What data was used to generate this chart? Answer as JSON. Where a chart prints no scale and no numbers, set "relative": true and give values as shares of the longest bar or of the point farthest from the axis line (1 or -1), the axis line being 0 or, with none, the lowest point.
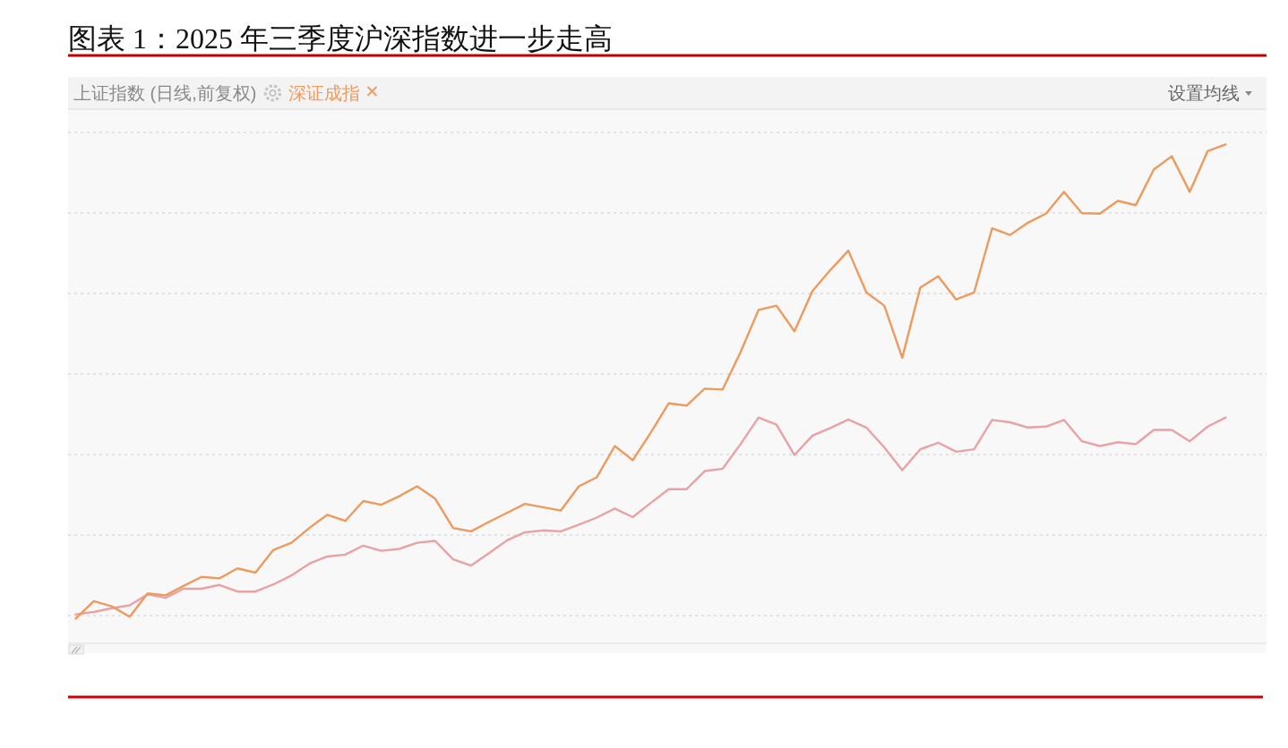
{
  "chart_data": {
    "type": "line",
    "title": "图表 1：2025 年三季度沪深指数进一步走高",
    "relative": true,
    "grid": "y",
    "legend": "top left",
    "annotations": [
      "上证指数 (日线,前复权)",
      "设置均线"
    ],
    "categories": [
      null,
      null,
      null,
      null,
      null,
      null,
      null,
      null,
      null,
      null,
      null,
      null,
      null,
      null,
      null,
      null,
      null,
      null,
      null,
      null,
      null,
      null,
      null,
      null,
      null,
      null,
      null,
      null,
      null,
      null,
      null,
      null,
      null,
      null,
      null,
      null,
      null,
      null,
      null,
      null,
      null,
      null,
      null,
      null,
      null,
      null,
      null,
      null,
      null,
      null,
      null,
      null,
      null,
      null,
      null,
      null,
      null,
      null,
      null,
      null,
      null,
      null,
      null,
      null,
      null
    ],
    "series": [
      {
        "color": "#e8a2a6",
        "values": [
          0.009,
          0.014,
          0.022,
          0.028,
          0.051,
          0.044,
          0.063,
          0.063,
          0.071,
          0.057,
          0.057,
          0.072,
          0.091,
          0.116,
          0.131,
          0.135,
          0.154,
          0.143,
          0.147,
          0.16,
          0.164,
          0.125,
          0.112,
          0.138,
          0.165,
          0.182,
          0.186,
          0.184,
          0.198,
          0.213,
          0.232,
          0.214,
          0.244,
          0.273,
          0.273,
          0.311,
          0.316,
          0.368,
          0.424,
          0.409,
          0.345,
          0.386,
          0.402,
          0.42,
          0.403,
          0.361,
          0.313,
          0.357,
          0.371,
          0.352,
          0.357,
          0.419,
          0.414,
          0.403,
          0.405,
          0.419,
          0.374,
          0.364,
          0.372,
          0.368,
          0.398,
          0.398,
          0.374,
          0.405,
          0.424
        ]
      },
      {
        "name": "深证成指",
        "color": "#ed9a5e",
        "values": [
          0,
          0.037,
          0.026,
          0.004,
          0.053,
          0.049,
          0.069,
          0.088,
          0.085,
          0.106,
          0.097,
          0.145,
          0.16,
          0.191,
          0.219,
          0.206,
          0.248,
          0.24,
          0.258,
          0.279,
          0.253,
          0.191,
          0.184,
          0.204,
          0.223,
          0.242,
          0.235,
          0.228,
          0.279,
          0.298,
          0.364,
          0.334,
          0.392,
          0.454,
          0.449,
          0.485,
          0.483,
          0.562,
          0.651,
          0.66,
          0.606,
          0.691,
          0.735,
          0.776,
          0.688,
          0.66,
          0.55,
          0.698,
          0.722,
          0.673,
          0.688,
          0.823,
          0.809,
          0.835,
          0.854,
          0.9,
          0.855,
          0.854,
          0.881,
          0.872,
          0.947,
          0.975,
          0.9,
          0.986,
          1
        ]
      }
    ]
  }
}
